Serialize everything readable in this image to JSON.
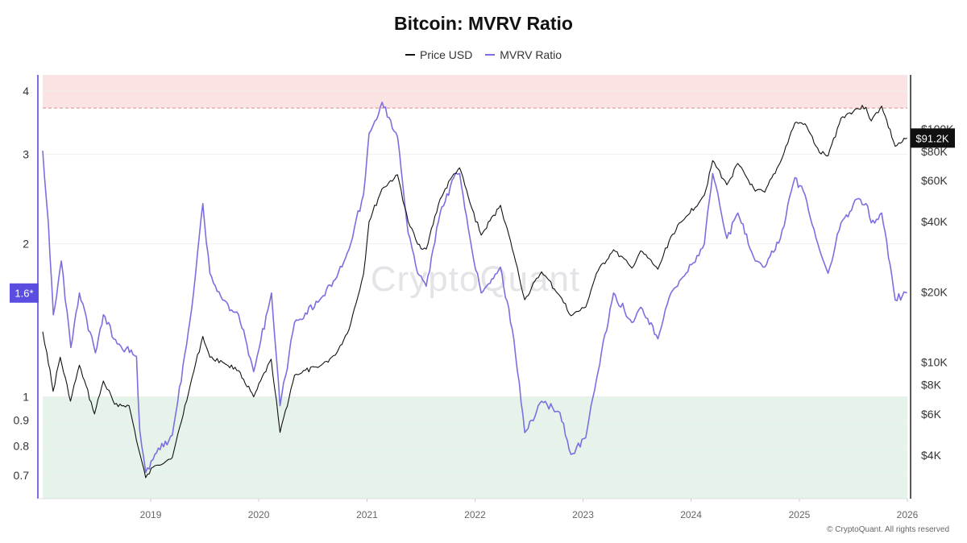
{
  "chart_data": {
    "type": "line",
    "title": "Bitcoin: MVRV Ratio",
    "legend_placement": "top-center",
    "grid": true,
    "series": [
      {
        "name": "Price USD",
        "axis": "right",
        "color": "#111111",
        "points": [
          [
            "2018-01-01",
            13500
          ],
          [
            "2018-01-15",
            11000
          ],
          [
            "2018-02-05",
            7500
          ],
          [
            "2018-03-01",
            10500
          ],
          [
            "2018-04-05",
            6800
          ],
          [
            "2018-05-05",
            9700
          ],
          [
            "2018-06-25",
            6000
          ],
          [
            "2018-07-25",
            8300
          ],
          [
            "2018-09-01",
            6600
          ],
          [
            "2018-10-20",
            6500
          ],
          [
            "2018-11-20",
            4300
          ],
          [
            "2018-12-15",
            3200
          ],
          [
            "2019-01-15",
            3600
          ],
          [
            "2019-03-15",
            3900
          ],
          [
            "2019-05-15",
            8000
          ],
          [
            "2019-06-26",
            12900
          ],
          [
            "2019-07-20",
            10500
          ],
          [
            "2019-09-01",
            10000
          ],
          [
            "2019-10-25",
            9200
          ],
          [
            "2019-12-15",
            7100
          ],
          [
            "2020-02-12",
            10300
          ],
          [
            "2020-03-13",
            5000
          ],
          [
            "2020-05-01",
            8800
          ],
          [
            "2020-07-25",
            9600
          ],
          [
            "2020-09-15",
            10700
          ],
          [
            "2020-11-01",
            13800
          ],
          [
            "2020-12-20",
            23800
          ],
          [
            "2021-01-08",
            40000
          ],
          [
            "2021-02-20",
            55000
          ],
          [
            "2021-04-14",
            63500
          ],
          [
            "2021-05-20",
            40000
          ],
          [
            "2021-06-21",
            32000
          ],
          [
            "2021-07-20",
            30500
          ],
          [
            "2021-09-05",
            50000
          ],
          [
            "2021-10-21",
            64000
          ],
          [
            "2021-11-10",
            68000
          ],
          [
            "2021-12-15",
            48000
          ],
          [
            "2022-01-22",
            35000
          ],
          [
            "2022-03-28",
            47000
          ],
          [
            "2022-05-12",
            29000
          ],
          [
            "2022-06-18",
            18500
          ],
          [
            "2022-08-14",
            24400
          ],
          [
            "2022-10-15",
            19200
          ],
          [
            "2022-11-21",
            15800
          ],
          [
            "2023-01-10",
            17200
          ],
          [
            "2023-02-15",
            24000
          ],
          [
            "2023-04-14",
            30300
          ],
          [
            "2023-06-15",
            25300
          ],
          [
            "2023-07-15",
            30000
          ],
          [
            "2023-09-11",
            25000
          ],
          [
            "2023-10-25",
            34500
          ],
          [
            "2023-12-15",
            42000
          ],
          [
            "2024-02-15",
            52000
          ],
          [
            "2024-03-14",
            73000
          ],
          [
            "2024-05-01",
            57500
          ],
          [
            "2024-06-07",
            71000
          ],
          [
            "2024-08-05",
            54000
          ],
          [
            "2024-09-06",
            53500
          ],
          [
            "2024-10-29",
            72000
          ],
          [
            "2024-12-17",
            106000
          ],
          [
            "2025-01-20",
            105000
          ],
          [
            "2025-03-10",
            79000
          ],
          [
            "2025-04-08",
            76500
          ],
          [
            "2025-05-22",
            111000
          ],
          [
            "2025-07-14",
            122000
          ],
          [
            "2025-08-14",
            123500
          ],
          [
            "2025-09-01",
            108000
          ],
          [
            "2025-10-06",
            125000
          ],
          [
            "2025-11-21",
            84000
          ],
          [
            "2025-12-15",
            88000
          ],
          [
            "2025-12-31",
            91200
          ]
        ]
      },
      {
        "name": "MVRV Ratio",
        "axis": "left",
        "color": "#7b6fe0",
        "points": [
          [
            "2018-01-01",
            3.05
          ],
          [
            "2018-01-20",
            2.2
          ],
          [
            "2018-02-06",
            1.45
          ],
          [
            "2018-03-05",
            1.85
          ],
          [
            "2018-04-06",
            1.25
          ],
          [
            "2018-05-05",
            1.6
          ],
          [
            "2018-06-28",
            1.22
          ],
          [
            "2018-07-25",
            1.45
          ],
          [
            "2018-09-10",
            1.27
          ],
          [
            "2018-11-14",
            1.2
          ],
          [
            "2018-11-25",
            0.86
          ],
          [
            "2018-12-15",
            0.71
          ],
          [
            "2019-01-15",
            0.77
          ],
          [
            "2019-03-15",
            0.84
          ],
          [
            "2019-05-20",
            1.5
          ],
          [
            "2019-06-26",
            2.4
          ],
          [
            "2019-07-20",
            1.75
          ],
          [
            "2019-09-01",
            1.55
          ],
          [
            "2019-10-25",
            1.45
          ],
          [
            "2019-12-15",
            1.12
          ],
          [
            "2020-02-13",
            1.6
          ],
          [
            "2020-03-13",
            0.96
          ],
          [
            "2020-05-01",
            1.4
          ],
          [
            "2020-07-25",
            1.55
          ],
          [
            "2020-09-15",
            1.7
          ],
          [
            "2020-11-01",
            1.95
          ],
          [
            "2020-12-20",
            2.5
          ],
          [
            "2021-01-08",
            3.3
          ],
          [
            "2021-02-21",
            3.8
          ],
          [
            "2021-04-14",
            3.25
          ],
          [
            "2021-05-20",
            2.1
          ],
          [
            "2021-06-21",
            1.75
          ],
          [
            "2021-07-20",
            1.65
          ],
          [
            "2021-09-05",
            2.3
          ],
          [
            "2021-10-21",
            2.7
          ],
          [
            "2021-11-10",
            2.75
          ],
          [
            "2021-12-15",
            2.05
          ],
          [
            "2022-01-22",
            1.6
          ],
          [
            "2022-03-28",
            1.8
          ],
          [
            "2022-05-12",
            1.3
          ],
          [
            "2022-06-18",
            0.85
          ],
          [
            "2022-08-14",
            0.98
          ],
          [
            "2022-10-15",
            0.93
          ],
          [
            "2022-11-21",
            0.77
          ],
          [
            "2023-01-10",
            0.83
          ],
          [
            "2023-02-15",
            1.08
          ],
          [
            "2023-04-14",
            1.6
          ],
          [
            "2023-06-15",
            1.4
          ],
          [
            "2023-07-15",
            1.5
          ],
          [
            "2023-09-11",
            1.3
          ],
          [
            "2023-10-25",
            1.6
          ],
          [
            "2023-12-15",
            1.75
          ],
          [
            "2024-02-15",
            2.0
          ],
          [
            "2024-03-14",
            2.75
          ],
          [
            "2024-05-01",
            2.05
          ],
          [
            "2024-06-07",
            2.3
          ],
          [
            "2024-08-05",
            1.85
          ],
          [
            "2024-09-06",
            1.8
          ],
          [
            "2024-10-29",
            2.05
          ],
          [
            "2024-12-17",
            2.7
          ],
          [
            "2025-01-20",
            2.5
          ],
          [
            "2025-03-10",
            1.95
          ],
          [
            "2025-04-08",
            1.75
          ],
          [
            "2025-05-22",
            2.2
          ],
          [
            "2025-07-14",
            2.45
          ],
          [
            "2025-08-14",
            2.4
          ],
          [
            "2025-09-01",
            2.2
          ],
          [
            "2025-10-06",
            2.3
          ],
          [
            "2025-11-21",
            1.55
          ],
          [
            "2025-12-15",
            1.58
          ],
          [
            "2025-12-31",
            1.6
          ]
        ]
      }
    ],
    "x_axis": {
      "type": "date",
      "range": [
        "2018-01-01",
        "2026-01-01"
      ],
      "tick_labels": [
        "2019",
        "2020",
        "2021",
        "2022",
        "2023",
        "2024",
        "2025",
        "2026"
      ]
    },
    "y_left": {
      "name": "MVRV Ratio",
      "scale": "log",
      "range": [
        0.63,
        4.3
      ],
      "tick_labels": [
        "0.7",
        "0.8",
        "0.9",
        "1",
        "2",
        "3",
        "4"
      ],
      "current_value_label": "1.6*",
      "current_value": 1.6
    },
    "y_right": {
      "name": "Price USD",
      "scale": "log",
      "range": [
        2600,
        170000
      ],
      "tick_labels": [
        "$4K",
        "$6K",
        "$8K",
        "$10K",
        "$20K",
        "$40K",
        "$60K",
        "$80K",
        "$100K"
      ],
      "current_value_label": "$91.2K",
      "current_value": 91200
    },
    "bands": [
      {
        "axis": "left",
        "from": 3.7,
        "to": 4.3,
        "color": "#fbe3e3",
        "line": 3.7,
        "line_color": "#e08b8b"
      },
      {
        "axis": "left",
        "from": 0.63,
        "to": 1.0,
        "color": "#e6f3ea",
        "line": 1.0,
        "line_color": "#7bbf8a"
      }
    ]
  },
  "watermark": "CryptoQuant",
  "copyright": "© CryptoQuant. All rights reserved"
}
